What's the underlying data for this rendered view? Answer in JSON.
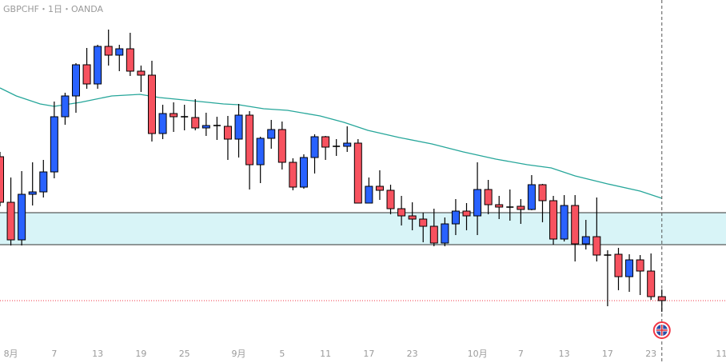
{
  "header": {
    "title": "GBPCHF・1日・OANDA"
  },
  "colors": {
    "up": "#2962ff",
    "down": "#f7525f",
    "ma": "#26a69a",
    "zone_fill": "#d8f4f7",
    "zone_border": "#333333",
    "price_line": "#f23645",
    "crosshair": "#555555"
  },
  "chart_data": {
    "type": "candlestick",
    "symbol": "GBPCHF",
    "interval": "1日",
    "source": "OANDA",
    "ylim": [
      1.0946,
      1.14
    ],
    "x_tick_labels": [
      {
        "index": 1,
        "label": "8月"
      },
      {
        "index": 5,
        "label": "7"
      },
      {
        "index": 9,
        "label": "13"
      },
      {
        "index": 13,
        "label": "19"
      },
      {
        "index": 17,
        "label": "25"
      },
      {
        "index": 22,
        "label": "9月"
      },
      {
        "index": 26,
        "label": "5"
      },
      {
        "index": 30,
        "label": "11"
      },
      {
        "index": 34,
        "label": "17"
      },
      {
        "index": 38,
        "label": "23"
      },
      {
        "index": 44,
        "label": "10月"
      },
      {
        "index": 48,
        "label": "7"
      },
      {
        "index": 52,
        "label": "13"
      },
      {
        "index": 56,
        "label": "17"
      },
      {
        "index": 60,
        "label": "23"
      },
      {
        "index": 66.5,
        "label": "11"
      }
    ],
    "ohlc": [
      [
        1.1204,
        1.121,
        1.1142,
        1.1147
      ],
      [
        1.1147,
        1.1178,
        1.1093,
        1.11
      ],
      [
        1.11,
        1.1186,
        1.1093,
        1.1157
      ],
      [
        1.1157,
        1.1197,
        1.1143,
        1.116
      ],
      [
        1.116,
        1.12,
        1.1153,
        1.1185
      ],
      [
        1.1185,
        1.1273,
        1.1177,
        1.1254
      ],
      [
        1.1254,
        1.1284,
        1.1244,
        1.128
      ],
      [
        1.128,
        1.1321,
        1.1259,
        1.1319
      ],
      [
        1.1319,
        1.134,
        1.1289,
        1.1295
      ],
      [
        1.1295,
        1.1344,
        1.1289,
        1.1342
      ],
      [
        1.1342,
        1.1363,
        1.1318,
        1.1331
      ],
      [
        1.1331,
        1.1344,
        1.1311,
        1.1339
      ],
      [
        1.1339,
        1.1359,
        1.1305,
        1.1311
      ],
      [
        1.1311,
        1.1318,
        1.1285,
        1.1306
      ],
      [
        1.1306,
        1.1324,
        1.1223,
        1.1233
      ],
      [
        1.1233,
        1.1269,
        1.1226,
        1.1258
      ],
      [
        1.1258,
        1.1272,
        1.1235,
        1.1254
      ],
      [
        1.1254,
        1.1269,
        1.1237,
        1.1254
      ],
      [
        1.1253,
        1.1276,
        1.1237,
        1.124
      ],
      [
        1.124,
        1.1259,
        1.123,
        1.1243
      ],
      [
        1.1243,
        1.1254,
        1.1225,
        1.1243
      ],
      [
        1.1242,
        1.1255,
        1.12,
        1.1226
      ],
      [
        1.1226,
        1.127,
        1.1203,
        1.1256
      ],
      [
        1.1256,
        1.1261,
        1.1163,
        1.1194
      ],
      [
        1.1194,
        1.1229,
        1.1171,
        1.1227
      ],
      [
        1.1227,
        1.125,
        1.1214,
        1.1238
      ],
      [
        1.1238,
        1.1248,
        1.1188,
        1.1197
      ],
      [
        1.1197,
        1.1202,
        1.1162,
        1.1166
      ],
      [
        1.1166,
        1.1207,
        1.1164,
        1.1203
      ],
      [
        1.1203,
        1.1232,
        1.1183,
        1.1229
      ],
      [
        1.1229,
        1.123,
        1.12,
        1.1216
      ],
      [
        1.1217,
        1.1226,
        1.1205,
        1.1217
      ],
      [
        1.1217,
        1.1242,
        1.121,
        1.1221
      ],
      [
        1.1221,
        1.1226,
        1.1146,
        1.1146
      ],
      [
        1.1146,
        1.1178,
        1.1146,
        1.1167
      ],
      [
        1.1167,
        1.1187,
        1.115,
        1.1162
      ],
      [
        1.1162,
        1.1169,
        1.1132,
        1.1139
      ],
      [
        1.1139,
        1.1155,
        1.1118,
        1.113
      ],
      [
        1.113,
        1.1147,
        1.1112,
        1.1126
      ],
      [
        1.1126,
        1.1134,
        1.1097,
        1.1117
      ],
      [
        1.1117,
        1.1139,
        1.1092,
        1.1096
      ],
      [
        1.1096,
        1.1128,
        1.1092,
        1.112
      ],
      [
        1.112,
        1.1151,
        1.1106,
        1.1136
      ],
      [
        1.1136,
        1.1146,
        1.1112,
        1.113
      ],
      [
        1.113,
        1.1197,
        1.1106,
        1.1163
      ],
      [
        1.1163,
        1.1175,
        1.1132,
        1.1144
      ],
      [
        1.1144,
        1.1155,
        1.1126,
        1.1141
      ],
      [
        1.1141,
        1.1163,
        1.1124,
        1.1141
      ],
      [
        1.1142,
        1.1151,
        1.112,
        1.1138
      ],
      [
        1.1138,
        1.1181,
        1.1137,
        1.1169
      ],
      [
        1.1169,
        1.117,
        1.1122,
        1.1149
      ],
      [
        1.1149,
        1.1155,
        1.1094,
        1.1101
      ],
      [
        1.1101,
        1.1156,
        1.1098,
        1.1143
      ],
      [
        1.1143,
        1.1156,
        1.1073,
        1.1095
      ],
      [
        1.1095,
        1.1125,
        1.1088,
        1.1104
      ],
      [
        1.1104,
        1.1153,
        1.1073,
        1.1081
      ],
      [
        1.1081,
        1.1087,
        1.1017,
        1.1081
      ],
      [
        1.1082,
        1.109,
        1.1037,
        1.1054
      ],
      [
        1.1054,
        1.1082,
        1.1035,
        1.1075
      ],
      [
        1.1075,
        1.1081,
        1.1031,
        1.1061
      ],
      [
        1.1061,
        1.1083,
        1.1025,
        1.1029
      ],
      [
        1.1029,
        1.1038,
        1.101,
        1.1024
      ]
    ],
    "moving_average": {
      "x": [
        0,
        1.5,
        3.7,
        5,
        7.4,
        10.3,
        12.9,
        14.7,
        17.7,
        20.6,
        22,
        24.3,
        26.5,
        29.5,
        31.7,
        33.9,
        36.8,
        39.8,
        42.7,
        45.7,
        48.6,
        50.8,
        53,
        56,
        59,
        61
      ],
      "y": [
        1.129,
        1.128,
        1.127,
        1.1267,
        1.1272,
        1.128,
        1.1282,
        1.1278,
        1.1274,
        1.127,
        1.1269,
        1.1264,
        1.1262,
        1.1255,
        1.1247,
        1.1237,
        1.1228,
        1.122,
        1.121,
        1.1201,
        1.1194,
        1.119,
        1.118,
        1.117,
        1.1161,
        1.1152
      ]
    },
    "zone": {
      "top": 1.1134,
      "bottom": 1.1094
    },
    "last_price": 1.1024,
    "crosshair_index": 61,
    "event_marker": {
      "index": 61,
      "icon": "uk-flag-icon"
    }
  }
}
